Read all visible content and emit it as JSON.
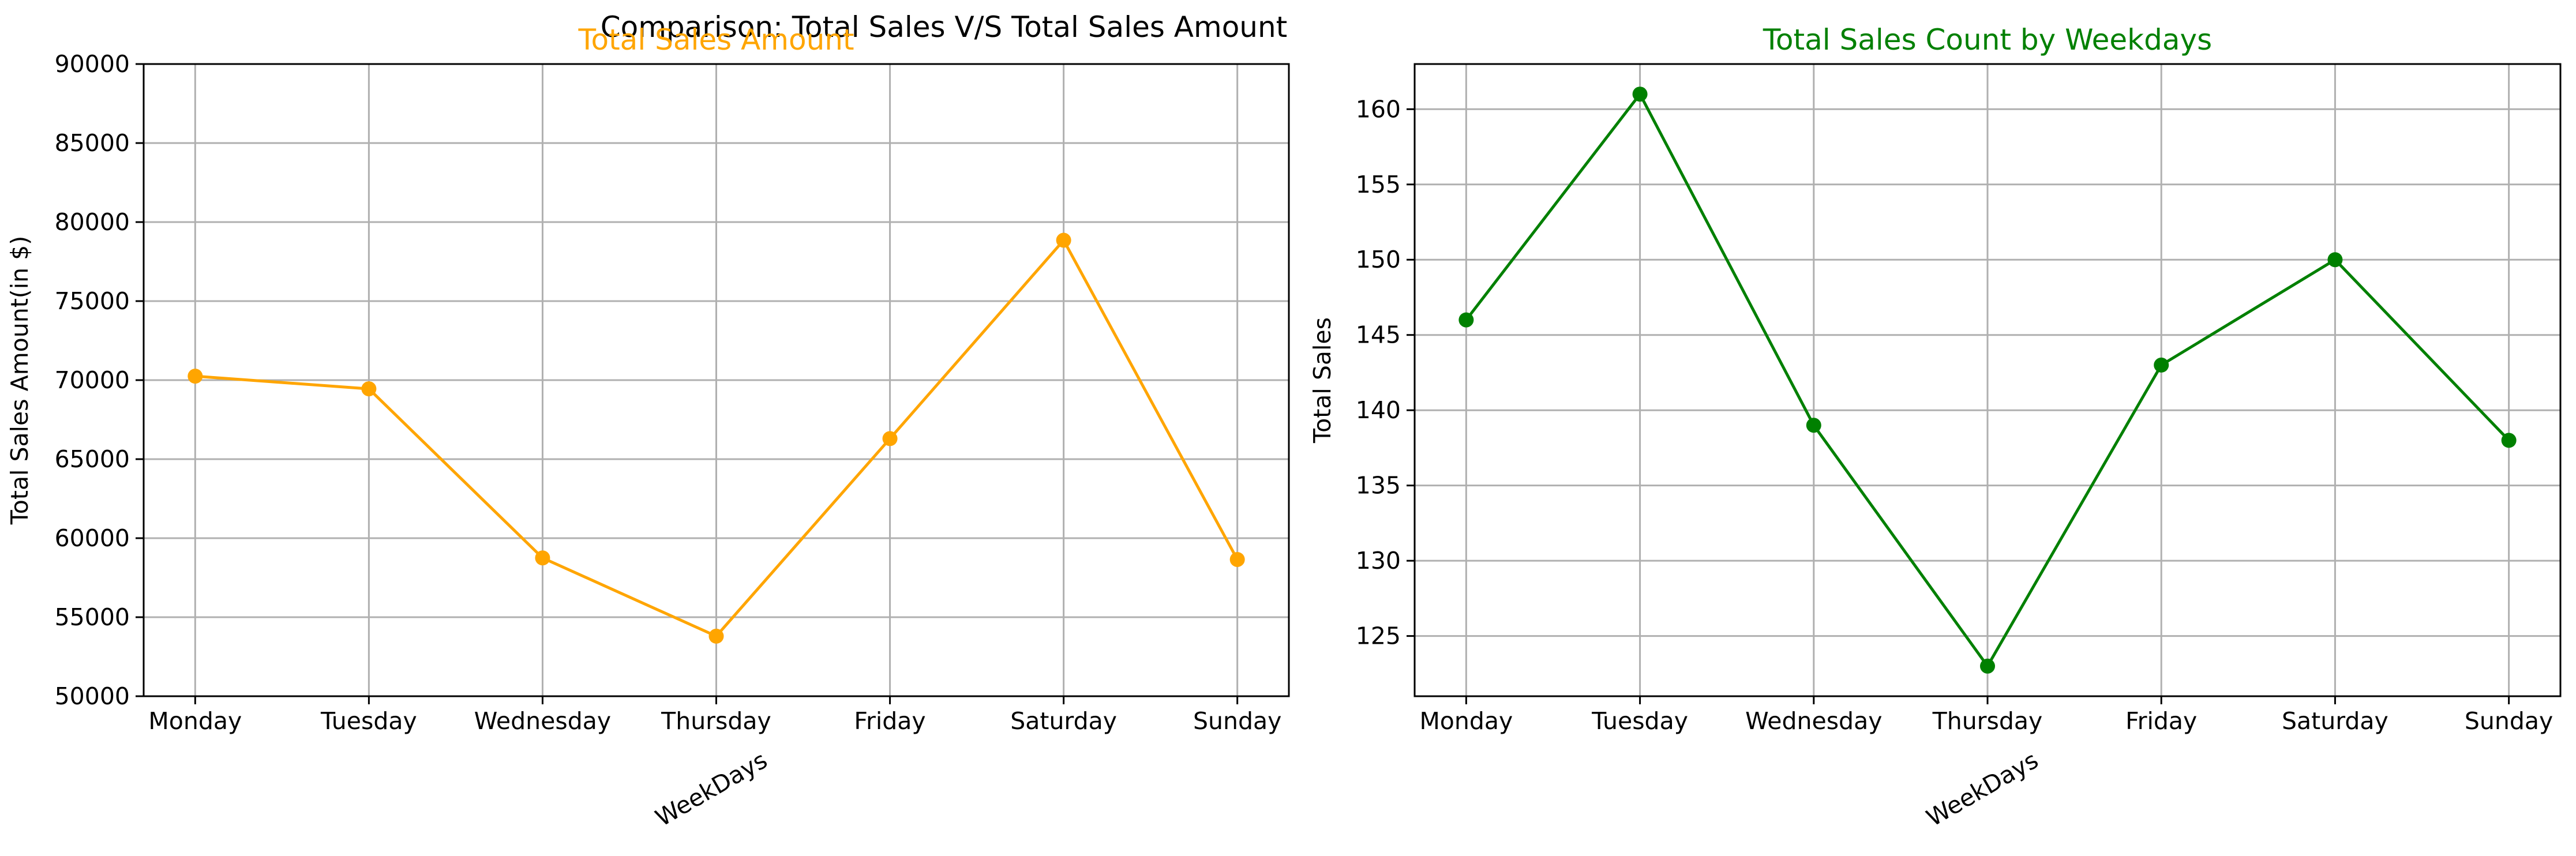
{
  "figure": {
    "suptitle": "Comparison: Total Sales V/S Total Sales Amount"
  },
  "chart_data": [
    {
      "type": "line",
      "title": "Total Sales Amount",
      "title_color": "#ffa500",
      "xlabel": "WeekDays",
      "ylabel": "Total Sales Amount(in $)",
      "categories": [
        "Monday",
        "Tuesday",
        "Wednesday",
        "Thursday",
        "Friday",
        "Saturday",
        "Sunday"
      ],
      "series": [
        {
          "color": "#ffa500",
          "marker": "circle",
          "values": [
            70250,
            69450,
            58750,
            53800,
            66300,
            78850,
            58650
          ]
        }
      ],
      "ylim": [
        50000,
        90000
      ],
      "yticks": [
        50000,
        55000,
        60000,
        65000,
        70000,
        75000,
        80000,
        85000,
        90000
      ],
      "grid": true,
      "legend": false
    },
    {
      "type": "line",
      "title": "Total Sales Count by Weekdays",
      "title_color": "#008000",
      "xlabel": "WeekDays",
      "ylabel": "Total Sales",
      "categories": [
        "Monday",
        "Tuesday",
        "Wednesday",
        "Thursday",
        "Friday",
        "Saturday",
        "Sunday"
      ],
      "series": [
        {
          "color": "#008000",
          "marker": "circle",
          "values": [
            146,
            161,
            139,
            123,
            143,
            150,
            138
          ]
        }
      ],
      "ylim": [
        121,
        163
      ],
      "yticks": [
        125,
        130,
        135,
        140,
        145,
        150,
        155,
        160
      ],
      "grid": true,
      "legend": false
    }
  ]
}
